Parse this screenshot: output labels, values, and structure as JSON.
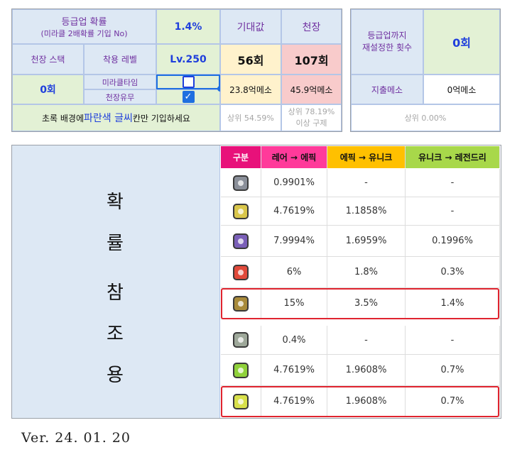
{
  "top": {
    "upgrade_prob_label": "등급업 확률",
    "upgrade_prob_sub": "(미라클 2배확률 기입 No)",
    "upgrade_prob_value": "1.4%",
    "expected_label": "기대값",
    "pity_label": "천장",
    "pity_stack_label": "천장 스택",
    "equip_level_label": "착용 레벨",
    "equip_level_value": "Lv.250",
    "expected_count": "56회",
    "pity_count": "107회",
    "pity_stack_value": "0회",
    "miracle_label": "미라클타임",
    "pity_flag_label": "천장유무",
    "expected_meso": "23.8억메소",
    "pity_meso": "45.9억메소",
    "instruction_prefix": "초록 배경에 ",
    "instruction_highlight": "파란색 글씨",
    "instruction_suffix": "칸만 기입하세요",
    "expected_rank": "상위 54.59%",
    "pity_rank_line1": "상위 78.19%",
    "pity_rank_line2": "이상 구제",
    "miracle_checked": false,
    "pity_checked": true
  },
  "right": {
    "reset_label_line1": "등급업까지",
    "reset_label_line2": "재설정한 횟수",
    "reset_value": "0회",
    "spent_label": "지출메소",
    "spent_value": "0억메소",
    "rank": "상위 0.00%"
  },
  "reference": {
    "side_chars": [
      "확",
      "률",
      "참",
      "조",
      "용"
    ],
    "headers": [
      "구분",
      "레어 → 에픽",
      "에픽 → 유니크",
      "유니크 → 레전드리"
    ],
    "header_colors": [
      "#e8117a",
      "#ff3a9a",
      "#ffc000",
      "#a8d84a"
    ],
    "rows": [
      {
        "icon": "cube-gray-icon",
        "color": "#8a8f99",
        "values": [
          "0.9901%",
          "-",
          "-"
        ],
        "highlight": false
      },
      {
        "icon": "cube-gold-icon",
        "color": "#d9c64a",
        "values": [
          "4.7619%",
          "1.1858%",
          "-"
        ],
        "highlight": false
      },
      {
        "icon": "cube-purple-icon",
        "color": "#7a5fb8",
        "values": [
          "7.9994%",
          "1.6959%",
          "0.1996%"
        ],
        "highlight": false
      },
      {
        "icon": "cube-red-icon",
        "color": "#e0493a",
        "values": [
          "6%",
          "1.8%",
          "0.3%"
        ],
        "highlight": false
      },
      {
        "icon": "cube-dark-gold-icon",
        "color": "#a88a3a",
        "values": [
          "15%",
          "3.5%",
          "1.4%"
        ],
        "highlight": true
      },
      {
        "icon": "cube-green-gray-icon",
        "color": "#9ea89a",
        "values": [
          "0.4%",
          "-",
          "-"
        ],
        "highlight": false
      },
      {
        "icon": "cube-lime-icon",
        "color": "#8fd13a",
        "values": [
          "4.7619%",
          "1.9608%",
          "0.7%"
        ],
        "highlight": false
      },
      {
        "icon": "cube-yellow-green-icon",
        "color": "#d8e04a",
        "values": [
          "4.7619%",
          "1.9608%",
          "0.7%"
        ],
        "highlight": true
      }
    ]
  },
  "version": "Ver. 24. 01. 20"
}
